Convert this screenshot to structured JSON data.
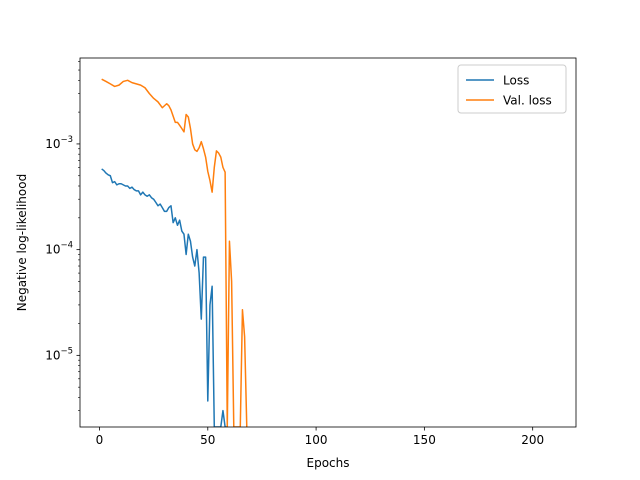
{
  "chart_data": {
    "type": "line",
    "title": "",
    "xlabel": "Epochs",
    "ylabel": "Negative log-likelihood",
    "xscale": "linear",
    "yscale": "log",
    "xlim": [
      -9,
      220
    ],
    "ylim": [
      2.1e-06,
      0.0065
    ],
    "xticks": [
      0,
      50,
      100,
      150,
      200
    ],
    "yticks": [
      {
        "value": 1e-05,
        "base": "10",
        "exp": "−5"
      },
      {
        "value": 0.0001,
        "base": "10",
        "exp": "−4"
      },
      {
        "value": 0.001,
        "base": "10",
        "exp": "−3"
      }
    ],
    "grid": false,
    "legend_position": "top-right",
    "series": [
      {
        "name": "Loss",
        "color": "#1f77b4",
        "x": [
          1,
          2,
          3,
          4,
          5,
          6,
          7,
          8,
          9,
          10,
          11,
          12,
          13,
          14,
          15,
          16,
          17,
          18,
          19,
          20,
          21,
          22,
          23,
          24,
          25,
          26,
          27,
          28,
          29,
          30,
          31,
          32,
          33,
          34,
          35,
          36,
          37,
          38,
          39,
          40,
          41,
          42,
          43,
          44,
          45,
          46,
          47,
          48,
          49,
          50,
          51,
          52,
          53,
          54,
          55,
          56,
          57,
          58,
          59
        ],
        "y": [
          0.00058,
          0.00056,
          0.00053,
          0.00051,
          0.0005,
          0.00043,
          0.00044,
          0.00041,
          0.00042,
          0.00042,
          0.00041,
          0.0004,
          0.0004,
          0.00038,
          0.00039,
          0.00037,
          0.00036,
          0.00036,
          0.00033,
          0.00035,
          0.00033,
          0.00032,
          0.00033,
          0.00031,
          0.0003,
          0.00028,
          0.00026,
          0.00027,
          0.00025,
          0.00023,
          0.00023,
          0.00025,
          0.00026,
          0.00018,
          0.0002,
          0.00017,
          0.00019,
          0.00015,
          0.00014,
          9e-05,
          0.00014,
          0.00012,
          8.5e-05,
          7e-05,
          0.0001,
          6e-05,
          2.2e-05,
          8.5e-05,
          8.5e-05,
          3.7e-06,
          3e-05,
          4.5e-05,
          2.1e-06,
          2.1e-06,
          2.1e-06,
          2.1e-06,
          3e-06,
          2.1e-06,
          2.1e-06
        ]
      },
      {
        "name": "Val. loss",
        "color": "#ff7f0e",
        "x": [
          1,
          3,
          5,
          7,
          9,
          11,
          13,
          15,
          17,
          19,
          21,
          23,
          25,
          27,
          29,
          31,
          32,
          33,
          35,
          36,
          37,
          38,
          39,
          40,
          41,
          42,
          43,
          44,
          45,
          46,
          47,
          48,
          49,
          50,
          51,
          52,
          53,
          54,
          55,
          56,
          57,
          58,
          59,
          60,
          61,
          62,
          63,
          64,
          65,
          66,
          67,
          68
        ],
        "y": [
          0.0041,
          0.0039,
          0.0037,
          0.0035,
          0.0036,
          0.0039,
          0.004,
          0.0038,
          0.0037,
          0.0036,
          0.0034,
          0.003,
          0.0027,
          0.0025,
          0.0022,
          0.0024,
          0.0023,
          0.0021,
          0.0016,
          0.0016,
          0.0015,
          0.0014,
          0.0013,
          0.0019,
          0.0018,
          0.0014,
          0.001,
          0.00088,
          0.00085,
          0.00092,
          0.00105,
          0.0009,
          0.00075,
          0.00055,
          0.00045,
          0.00035,
          0.0006,
          0.00086,
          0.00082,
          0.00075,
          0.0006,
          0.00054,
          2.1e-06,
          0.00012,
          5e-05,
          2.1e-06,
          2.1e-06,
          2.1e-06,
          2.1e-06,
          2.7e-05,
          1.5e-05,
          2.1e-06
        ]
      }
    ]
  }
}
